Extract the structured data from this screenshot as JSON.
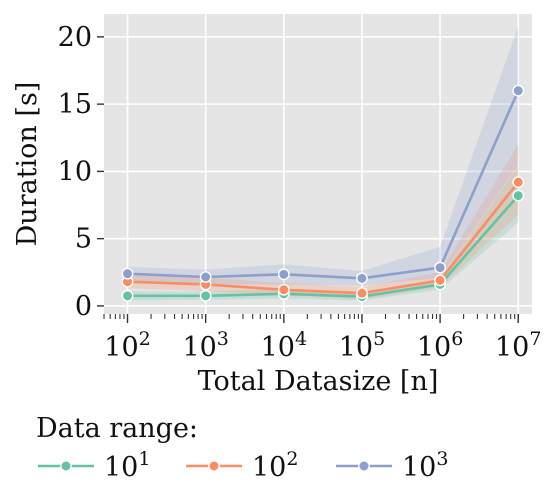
{
  "chart_data": {
    "type": "line",
    "xlabel": "Total Datasize [n]",
    "ylabel": "Duration [s]",
    "x_scale": "log",
    "xlim": [
      50,
      15000000
    ],
    "ylim": [
      -0.6,
      21.7
    ],
    "grid": true,
    "x": [
      100,
      1000,
      10000,
      100000,
      1000000,
      10000000
    ],
    "x_ticks": [
      {
        "value": 100,
        "base": "10",
        "exp": "2"
      },
      {
        "value": 1000,
        "base": "10",
        "exp": "3"
      },
      {
        "value": 10000,
        "base": "10",
        "exp": "4"
      },
      {
        "value": 100000,
        "base": "10",
        "exp": "5"
      },
      {
        "value": 1000000,
        "base": "10",
        "exp": "6"
      },
      {
        "value": 10000000,
        "base": "10",
        "exp": "7"
      }
    ],
    "y_ticks": [
      {
        "value": 0,
        "label": "0"
      },
      {
        "value": 5,
        "label": "5"
      },
      {
        "value": 10,
        "label": "10"
      },
      {
        "value": 15,
        "label": "15"
      },
      {
        "value": 20,
        "label": "20"
      }
    ],
    "legend": {
      "title": "Data range:",
      "placement": "bottom"
    },
    "series": [
      {
        "label_base": "10",
        "label_exp": "1",
        "color": "#66c2a5",
        "values": [
          0.75,
          0.75,
          0.9,
          0.7,
          1.6,
          8.2
        ],
        "lower": [
          0.4,
          0.45,
          0.55,
          0.4,
          1.2,
          6.2
        ],
        "upper": [
          1.1,
          1.05,
          1.3,
          1.0,
          2.0,
          10.4
        ]
      },
      {
        "label_base": "10",
        "label_exp": "2",
        "color": "#fc8d62",
        "values": [
          1.8,
          1.6,
          1.2,
          0.95,
          1.9,
          9.2
        ],
        "lower": [
          1.3,
          1.1,
          0.8,
          0.5,
          1.4,
          6.8
        ],
        "upper": [
          2.3,
          2.1,
          1.7,
          1.4,
          2.5,
          12.0
        ]
      },
      {
        "label_base": "10",
        "label_exp": "3",
        "color": "#8da0cb",
        "values": [
          2.4,
          2.15,
          2.35,
          2.05,
          2.85,
          16.0
        ],
        "lower": [
          1.9,
          1.6,
          1.6,
          1.5,
          2.1,
          10.5
        ],
        "upper": [
          2.9,
          2.7,
          3.1,
          2.6,
          4.4,
          20.8
        ]
      }
    ]
  }
}
